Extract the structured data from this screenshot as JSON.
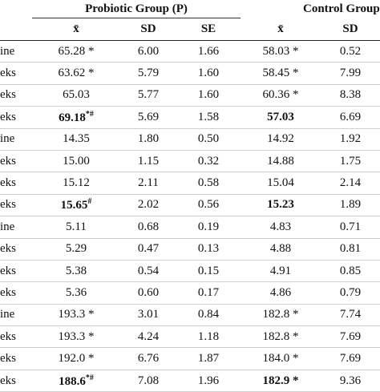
{
  "header": {
    "group1": "Probiotic Group (P)",
    "group2": "Control Group",
    "columns": [
      "x̄",
      "SD",
      "SE",
      "x̄",
      "SD"
    ]
  },
  "table": {
    "rows": [
      [
        "ine",
        {
          "text": "65.28 *"
        },
        "6.00",
        "1.66",
        {
          "text": "58.03 *"
        },
        "0.52"
      ],
      [
        "eks",
        {
          "text": "63.62 *"
        },
        "5.79",
        "1.60",
        {
          "text": "58.45 *"
        },
        "7.99"
      ],
      [
        "eks",
        {
          "text": "65.03"
        },
        "5.77",
        "1.60",
        {
          "text": "60.36 *"
        },
        "8.38"
      ],
      [
        "eks",
        {
          "text": "69.18",
          "sup": "*#",
          "bold": true
        },
        "5.69",
        "1.58",
        {
          "text": "57.03",
          "bold": true
        },
        "6.69"
      ],
      [
        "ine",
        {
          "text": "14.35"
        },
        "1.80",
        "0.50",
        {
          "text": "14.92"
        },
        "1.92"
      ],
      [
        "eks",
        {
          "text": "15.00"
        },
        "1.15",
        "0.32",
        {
          "text": "14.88"
        },
        "1.75"
      ],
      [
        "eks",
        {
          "text": "15.12"
        },
        "2.11",
        "0.58",
        {
          "text": "15.04"
        },
        "2.14"
      ],
      [
        "eks",
        {
          "text": "15.65",
          "sup": "#",
          "bold": true
        },
        "2.02",
        "0.56",
        {
          "text": "15.23",
          "bold": true
        },
        "1.89"
      ],
      [
        "ine",
        {
          "text": "5.11"
        },
        "0.68",
        "0.19",
        {
          "text": "4.83"
        },
        "0.71"
      ],
      [
        "eks",
        {
          "text": "5.29"
        },
        "0.47",
        "0.13",
        {
          "text": "4.88"
        },
        "0.81"
      ],
      [
        "eks",
        {
          "text": "5.38"
        },
        "0.54",
        "0.15",
        {
          "text": "4.91"
        },
        "0.85"
      ],
      [
        "eks",
        {
          "text": "5.36"
        },
        "0.60",
        "0.17",
        {
          "text": "4.86"
        },
        "0.79"
      ],
      [
        "ine",
        {
          "text": "193.3 *"
        },
        "3.01",
        "0.84",
        {
          "text": "182.8 *"
        },
        "7.74"
      ],
      [
        "eks",
        {
          "text": "193.3 *"
        },
        "4.24",
        "1.18",
        {
          "text": "182.8 *"
        },
        "7.69"
      ],
      [
        "eks",
        {
          "text": "192.0 *"
        },
        "6.76",
        "1.87",
        {
          "text": "184.0 *"
        },
        "7.69"
      ],
      [
        "eks",
        {
          "text": "188.6",
          "sup": "*#",
          "bold": true
        },
        "7.08",
        "1.96",
        {
          "text": "182.9 *",
          "bold": true
        },
        "9.36"
      ]
    ]
  }
}
